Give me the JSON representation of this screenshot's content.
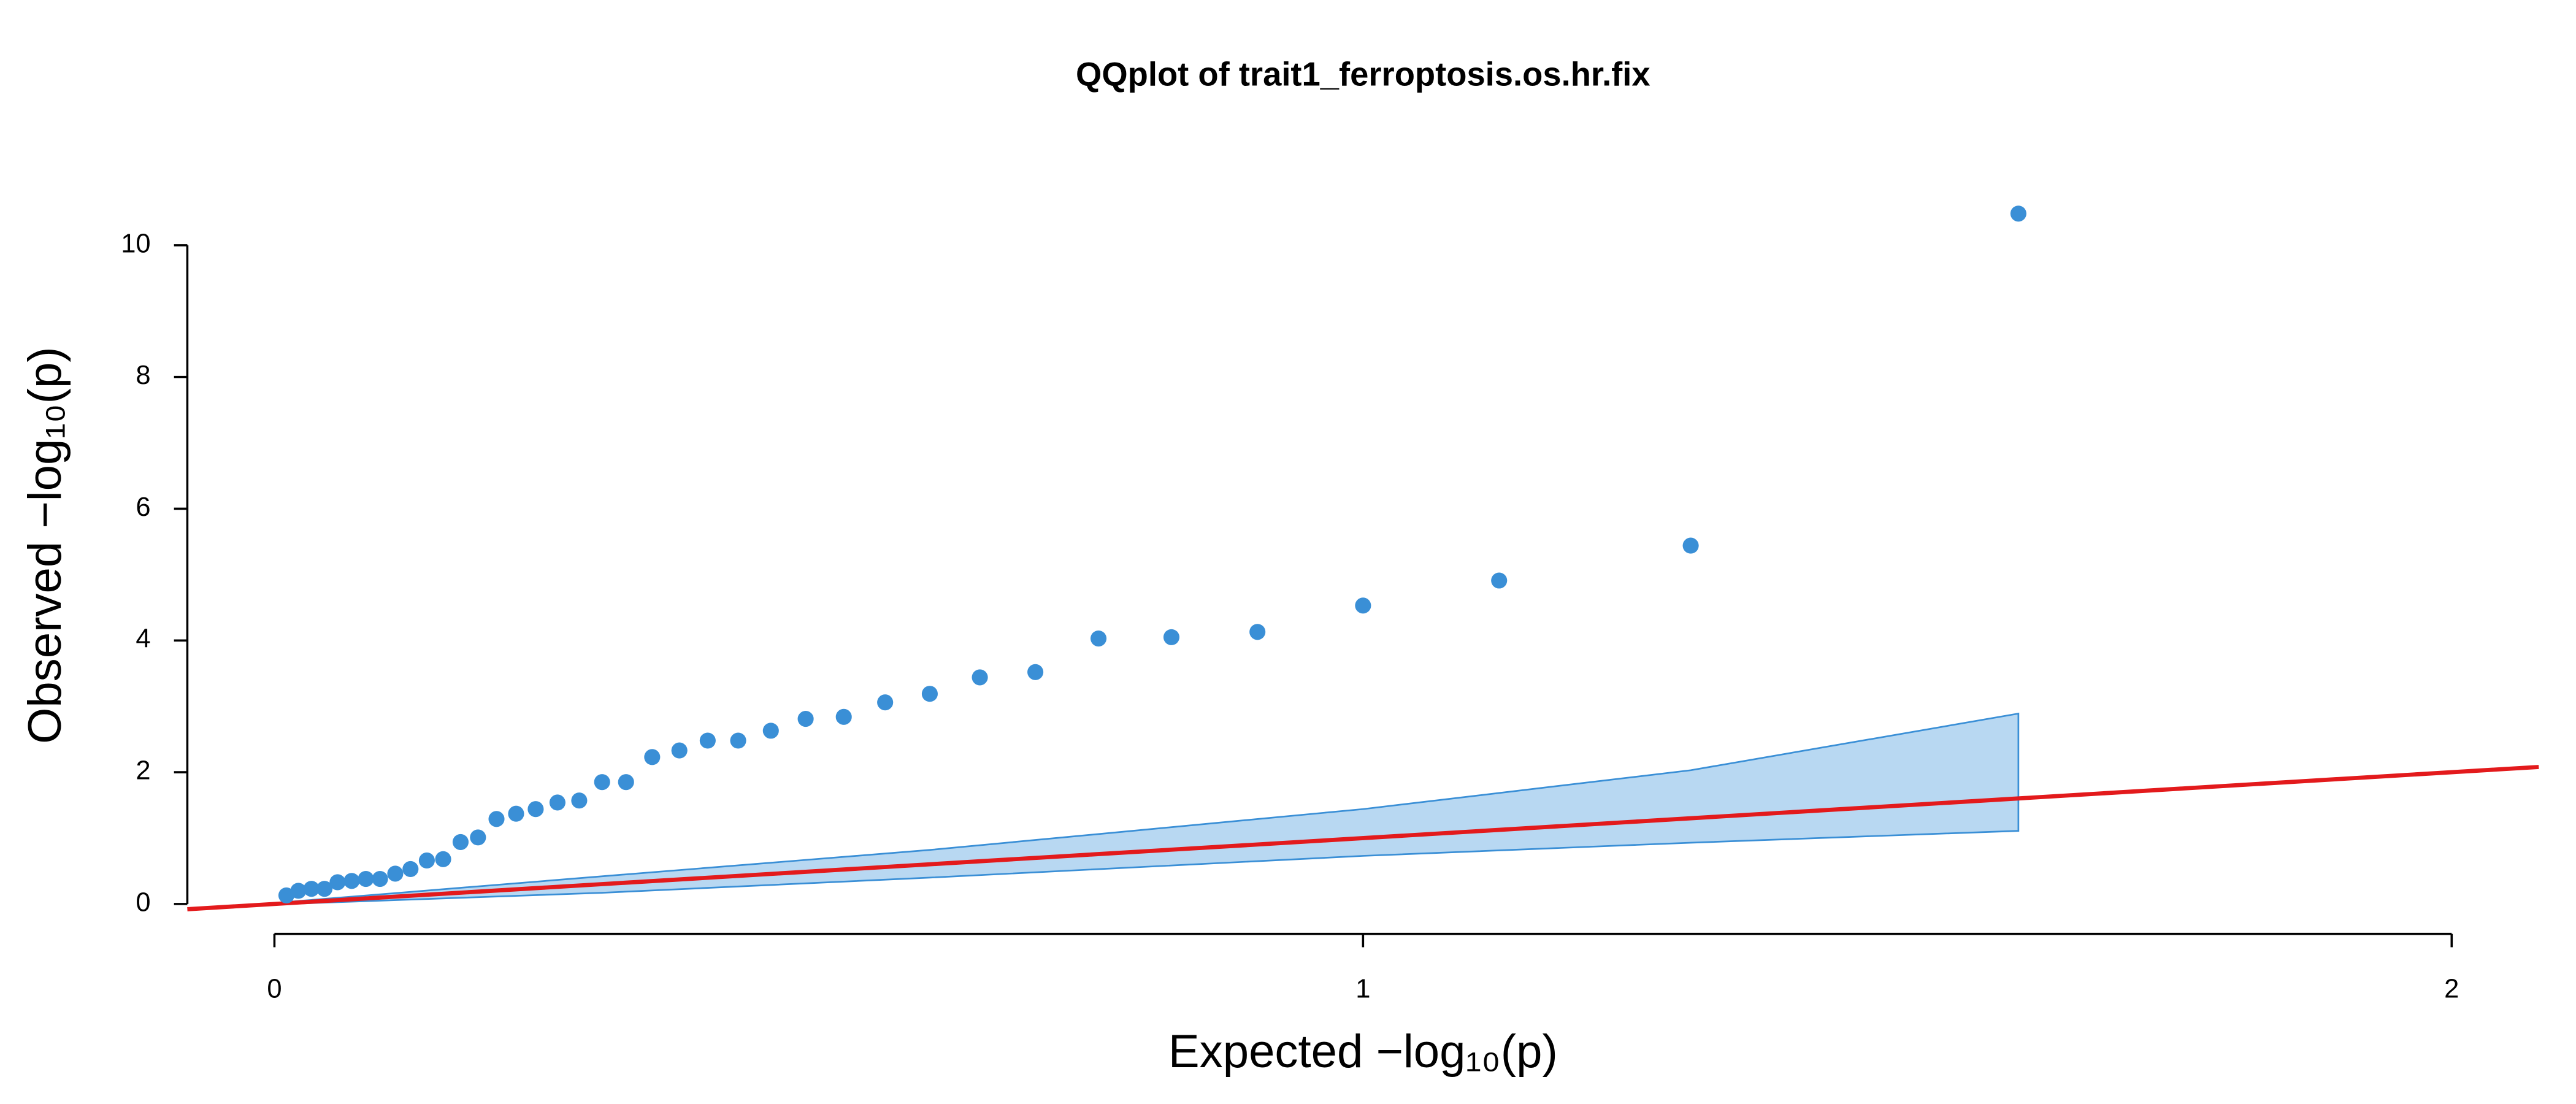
{
  "chart_data": {
    "type": "scatter",
    "title": "QQplot of trait1_ferroptosis.os.hr.fix",
    "xlabel": "Expected  −log₁₀(p)",
    "ylabel": "Observed  −log₁₀(p)",
    "xlim": [
      -0.08,
      2.08
    ],
    "ylim": [
      -0.1,
      10.9
    ],
    "xticks": [
      0,
      1,
      2
    ],
    "yticks": [
      0,
      2,
      4,
      6,
      8,
      10
    ],
    "series": [
      {
        "color": "#3a8fd6",
        "x": [
          0.011,
          0.022,
          0.034,
          0.046,
          0.058,
          0.071,
          0.084,
          0.097,
          0.111,
          0.125,
          0.14,
          0.155,
          0.171,
          0.187,
          0.204,
          0.222,
          0.24,
          0.26,
          0.28,
          0.301,
          0.323,
          0.347,
          0.372,
          0.398,
          0.426,
          0.456,
          0.488,
          0.523,
          0.561,
          0.602,
          0.648,
          0.699,
          0.757,
          0.824,
          0.903,
          1.0,
          1.125,
          1.301,
          1.602
        ],
        "values": [
          0.13,
          0.2,
          0.23,
          0.23,
          0.33,
          0.35,
          0.38,
          0.38,
          0.46,
          0.53,
          0.66,
          0.68,
          0.94,
          1.01,
          1.29,
          1.37,
          1.44,
          1.54,
          1.57,
          1.85,
          1.85,
          2.23,
          2.33,
          2.48,
          2.48,
          2.63,
          2.81,
          2.84,
          3.06,
          3.19,
          3.44,
          3.52,
          4.03,
          4.05,
          4.13,
          4.53,
          4.91,
          5.44,
          10.48
        ]
      }
    ],
    "confidence_band": {
      "fill": "#b8d8f2",
      "stroke": "#3a8fd6",
      "x": [
        0.011,
        0.301,
        0.602,
        1.0,
        1.301,
        1.602
      ],
      "upper": [
        0.03,
        0.42,
        0.82,
        1.44,
        2.03,
        2.89
      ],
      "lower": [
        0.0,
        0.17,
        0.4,
        0.73,
        0.93,
        1.11
      ]
    },
    "reference_line": {
      "color": "#e31a1c",
      "x": [
        -0.08,
        2.08
      ],
      "y": [
        -0.08,
        2.08
      ]
    }
  }
}
